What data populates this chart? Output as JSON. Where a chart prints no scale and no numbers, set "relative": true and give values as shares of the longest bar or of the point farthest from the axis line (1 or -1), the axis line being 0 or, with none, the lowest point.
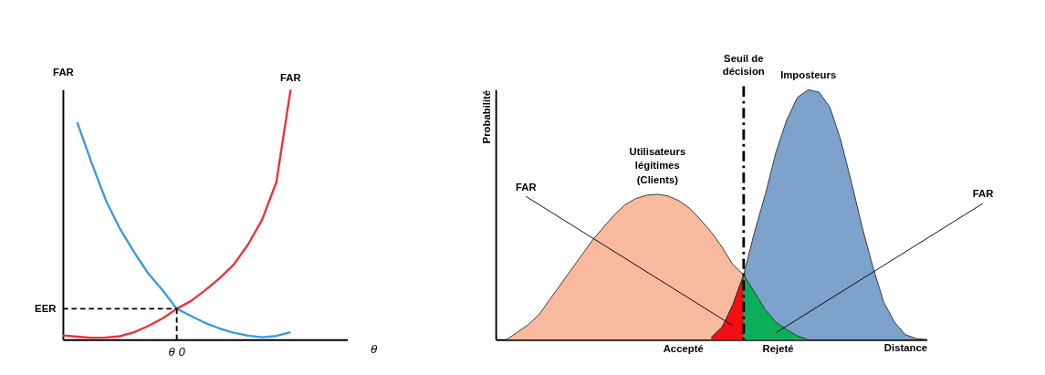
{
  "chart_data": [
    {
      "type": "line",
      "relative": true,
      "ylabel": "FAR",
      "xlabel": "θ",
      "categories": [
        null,
        null,
        null,
        null,
        null,
        null,
        null,
        null,
        null,
        null,
        null,
        null,
        null,
        null,
        null,
        null,
        null,
        null,
        null,
        null,
        null
      ],
      "series": [
        {
          "color": "#3a9ad9",
          "values": [
            null,
            0.87,
            0.71,
            0.56,
            0.445,
            0.35,
            0.265,
            0.198,
            0.124,
            0.095,
            0.067,
            0.045,
            0.028,
            0.016,
            0.01,
            0.015,
            0.03,
            null,
            null,
            null,
            null
          ]
        },
        {
          "name": "FAR",
          "color": "#f0303a",
          "values": [
            0.017,
            0.012,
            0.008,
            0.009,
            0.014,
            0.03,
            0.055,
            0.085,
            0.124,
            0.155,
            0.198,
            0.245,
            0.3,
            0.38,
            0.48,
            0.63,
            1.0,
            null,
            null,
            null,
            null
          ]
        }
      ],
      "annotations": [
        "EER",
        "θ 0"
      ]
    },
    {
      "type": "area",
      "relative": true,
      "ylabel": "Probabilité",
      "xlabel": "Distance",
      "categories": [
        null,
        null,
        null,
        null,
        null,
        null,
        null,
        null,
        null,
        null,
        null,
        null,
        null,
        null,
        null,
        null,
        null,
        null,
        null,
        null,
        null,
        null,
        null,
        null,
        null,
        null,
        null,
        null,
        null,
        null,
        null,
        null,
        null,
        null,
        null,
        null,
        null,
        null,
        null,
        null,
        null
      ],
      "series": [
        {
          "color": "#f7b393",
          "values": [
            null,
            0,
            0.03,
            0.06,
            0.1,
            0.16,
            0.22,
            0.28,
            0.34,
            0.4,
            0.45,
            0.5,
            0.54,
            0.565,
            0.578,
            0.582,
            0.575,
            0.556,
            0.525,
            0.48,
            0.43,
            0.37,
            0.3,
            0.26,
            0.19,
            0.12,
            0.07,
            0.04,
            0.015,
            0,
            null,
            null,
            null,
            null,
            null,
            null,
            null,
            null,
            null,
            null,
            null
          ]
        },
        {
          "color": "#6f98c6",
          "values": [
            null,
            null,
            null,
            null,
            null,
            null,
            null,
            null,
            null,
            null,
            null,
            null,
            null,
            null,
            null,
            null,
            null,
            null,
            null,
            null,
            0.01,
            0.05,
            0.14,
            0.26,
            0.43,
            0.58,
            0.75,
            0.88,
            0.97,
            1.0,
            0.99,
            0.93,
            0.8,
            0.63,
            0.45,
            0.29,
            0.15,
            0.07,
            0.02,
            0.005,
            0
          ]
        },
        {
          "color": "#ff0000",
          "values": [
            null,
            null,
            null,
            null,
            null,
            null,
            null,
            null,
            null,
            null,
            null,
            null,
            null,
            null,
            null,
            null,
            null,
            null,
            null,
            null,
            0.01,
            0.05,
            0.14,
            0.26,
            null,
            null,
            null,
            null,
            null,
            null,
            null,
            null,
            null,
            null,
            null,
            null,
            null,
            null,
            null,
            null,
            null
          ]
        },
        {
          "color": "#00b050",
          "values": [
            null,
            null,
            null,
            null,
            null,
            null,
            null,
            null,
            null,
            null,
            null,
            null,
            null,
            null,
            null,
            null,
            null,
            null,
            null,
            null,
            null,
            null,
            null,
            0.26,
            0.19,
            0.12,
            0.07,
            0.04,
            0.015,
            0,
            null,
            null,
            null,
            null,
            null,
            null,
            null,
            null,
            null,
            null,
            null
          ]
        }
      ],
      "annotations": [
        "Utilisateurs légitimes (Clients)",
        "Imposteurs",
        "FAR",
        "FAR",
        "Accepté",
        "Rejeté",
        "Seuil de décision"
      ]
    }
  ]
}
